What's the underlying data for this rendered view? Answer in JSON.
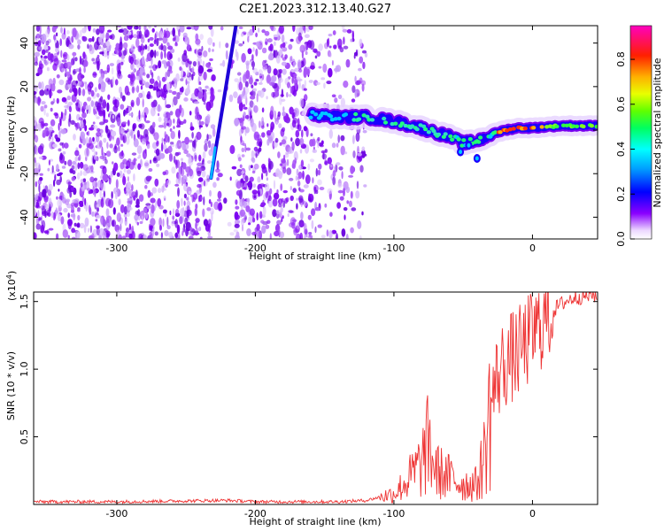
{
  "title": "C2E1.2023.312.13.40.G27",
  "chart_data": [
    {
      "type": "heatmap",
      "xlabel": "Height of straight line (km)",
      "ylabel": "Frequency (Hz)",
      "xlim": [
        -360,
        47
      ],
      "ylim": [
        -50,
        48
      ],
      "xticks": [
        -300,
        -200,
        -100,
        0
      ],
      "yticks": [
        -40,
        -20,
        0,
        20,
        40
      ],
      "colorbar": {
        "label": "Normalized spectral amplitude",
        "range": [
          0,
          0.95
        ],
        "ticks": [
          0.0,
          0.2,
          0.4,
          0.6,
          0.8
        ]
      },
      "ridge": {
        "x": [
          -160,
          -140,
          -120,
          -100,
          -80,
          -60,
          -50,
          -40,
          -30,
          -20,
          -10,
          0,
          20,
          47
        ],
        "y": [
          7,
          6,
          6,
          4,
          1,
          -3,
          -6,
          -5,
          -2,
          0,
          1,
          1,
          2,
          2
        ]
      },
      "streak": {
        "x": [
          -232,
          -214
        ],
        "y": [
          -22,
          48
        ]
      },
      "noise_extent_x": [
        -360,
        -120
      ]
    },
    {
      "type": "line",
      "xlabel": "Height of straight line (km)",
      "ylabel": "SNR (10 * v/v)",
      "y_multiplier": "(x10",
      "y_multiplier_exp": "4",
      "xlim": [
        -360,
        47
      ],
      "ylim": [
        0,
        1.57
      ],
      "xticks": [
        -300,
        -200,
        -100,
        0
      ],
      "yticks": [
        0.5,
        1.0,
        1.5
      ],
      "color": "#ee3333",
      "series": [
        {
          "x": [
            -360,
            -300,
            -220,
            -200,
            -140,
            -120,
            -100,
            -90,
            -80,
            -75,
            -70,
            -60,
            -50,
            -40,
            -35,
            -30,
            -25,
            -20,
            -10,
            0,
            10,
            20,
            30,
            47
          ],
          "y": [
            0.02,
            0.02,
            0.03,
            0.02,
            0.02,
            0.03,
            0.08,
            0.18,
            0.3,
            0.45,
            0.25,
            0.2,
            0.15,
            0.15,
            0.35,
            0.75,
            0.95,
            1.05,
            1.12,
            1.25,
            1.38,
            1.48,
            1.53,
            1.55
          ]
        }
      ]
    }
  ]
}
